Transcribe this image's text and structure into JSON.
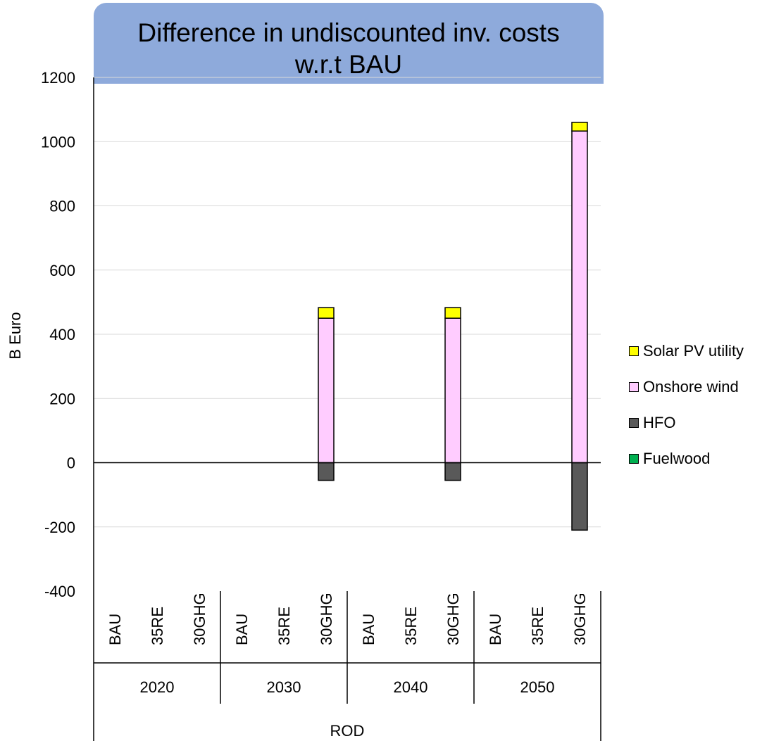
{
  "chart_data": {
    "type": "bar",
    "stacked": true,
    "title": "Difference in undiscounted inv. costs w.r.t BAU",
    "title_lines": [
      "Difference in undiscounted inv. costs",
      "w.r.t BAU"
    ],
    "ylabel": "B Euro",
    "xlabel": "ROD",
    "ylim": [
      -400,
      1200
    ],
    "yticks": [
      1200,
      1000,
      800,
      600,
      400,
      200,
      0,
      -200,
      -400
    ],
    "grid": true,
    "legend_position": "right",
    "groups": [
      "2020",
      "2030",
      "2040",
      "2050"
    ],
    "scenarios": [
      "BAU",
      "35RE",
      "30GHG"
    ],
    "categories": [
      "2020 BAU",
      "2020 35RE",
      "2020 30GHG",
      "2030 BAU",
      "2030 35RE",
      "2030 30GHG",
      "2040 BAU",
      "2040 35RE",
      "2040 30GHG",
      "2050 BAU",
      "2050 35RE",
      "2050 30GHG"
    ],
    "series": [
      {
        "name": "Fuelwood",
        "color": "#00b050",
        "values": [
          0,
          0,
          0,
          0,
          0,
          0,
          0,
          0,
          0,
          0,
          0,
          0
        ]
      },
      {
        "name": "HFO",
        "color": "#595959",
        "values": [
          0,
          0,
          0,
          0,
          0,
          -55,
          0,
          0,
          -55,
          0,
          0,
          -210
        ]
      },
      {
        "name": "Onshore wind",
        "color": "#ffccff",
        "values": [
          0,
          0,
          0,
          0,
          0,
          450,
          0,
          0,
          450,
          0,
          0,
          1033
        ]
      },
      {
        "name": "Solar PV utility",
        "color": "#ffff00",
        "values": [
          0,
          0,
          0,
          0,
          0,
          33,
          0,
          0,
          33,
          0,
          0,
          27
        ]
      }
    ],
    "legend_order": [
      "Solar PV utility",
      "Onshore wind",
      "HFO",
      "Fuelwood"
    ]
  }
}
